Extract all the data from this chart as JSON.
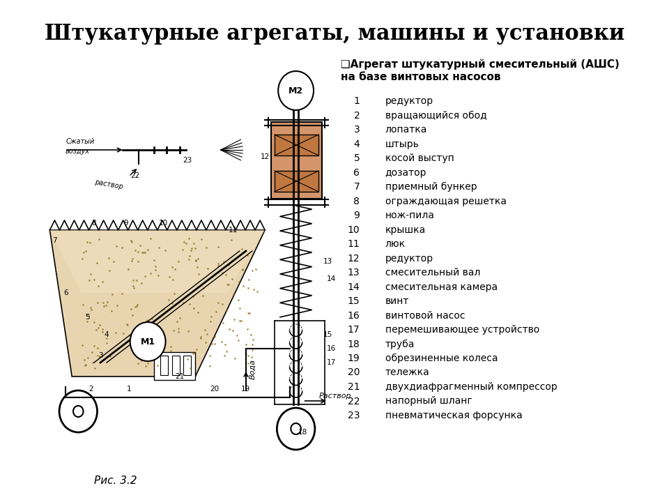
{
  "title": "Штукатурные агрегаты, машины и установки",
  "subtitle_checkbox": "❑Агрегат штукатурный смесительный (АШС)\nна базе винтовых насосов",
  "figure_caption": "Рис. 3.2",
  "legend_items": [
    [
      1,
      "редуктор"
    ],
    [
      2,
      "вращающийся обод"
    ],
    [
      3,
      "лопатка"
    ],
    [
      4,
      "штырь"
    ],
    [
      5,
      "косой выступ"
    ],
    [
      6,
      "дозатор"
    ],
    [
      7,
      "приемный бункер"
    ],
    [
      8,
      "ограждающая решетка"
    ],
    [
      9,
      "нож-пила"
    ],
    [
      10,
      "крышка"
    ],
    [
      11,
      "люк"
    ],
    [
      12,
      "редуктор"
    ],
    [
      13,
      "смесительный вал"
    ],
    [
      14,
      "смесительная камера"
    ],
    [
      15,
      "винт"
    ],
    [
      16,
      "винтовой насос"
    ],
    [
      17,
      "перемешивающее устройство"
    ],
    [
      18,
      "труба"
    ],
    [
      19,
      "обрезиненные колеса"
    ],
    [
      20,
      "тележка"
    ],
    [
      21,
      "двухдиафрагменный компрессор"
    ],
    [
      22,
      "напорный шланг"
    ],
    [
      23,
      "пневматическая форсунка"
    ]
  ],
  "bg_color": "#ffffff",
  "text_color": "#000000",
  "diagram_color": "#000000",
  "fill_color": "#d4b896",
  "gear_color": "#c8a878"
}
